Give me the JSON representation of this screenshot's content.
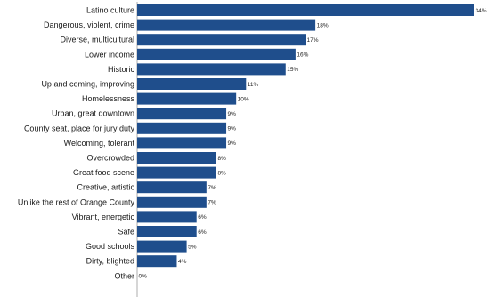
{
  "chart_data": {
    "type": "bar",
    "orientation": "horizontal",
    "title": "",
    "xlabel": "",
    "ylabel": "",
    "grid": false,
    "legend": "none",
    "xlim": [
      0,
      34
    ],
    "bar_color": "#1f4e8c",
    "value_suffix": "%",
    "categories": [
      "Latino culture",
      "Dangerous, violent, crime",
      "Diverse, multicultural",
      "Lower income",
      "Historic",
      "Up and coming, improving",
      "Homelessness",
      "Urban, great downtown",
      "County seat, place for jury duty",
      "Welcoming, tolerant",
      "Overcrowded",
      "Great food scene",
      "Creative, artistic",
      "Unlike the rest of Orange County",
      "Vibrant, energetic",
      "Safe",
      "Good schools",
      "Dirty, blighted",
      "Other"
    ],
    "values": [
      34,
      18,
      17,
      16,
      15,
      11,
      10,
      9,
      9,
      9,
      8,
      8,
      7,
      7,
      6,
      6,
      5,
      4,
      0
    ]
  }
}
